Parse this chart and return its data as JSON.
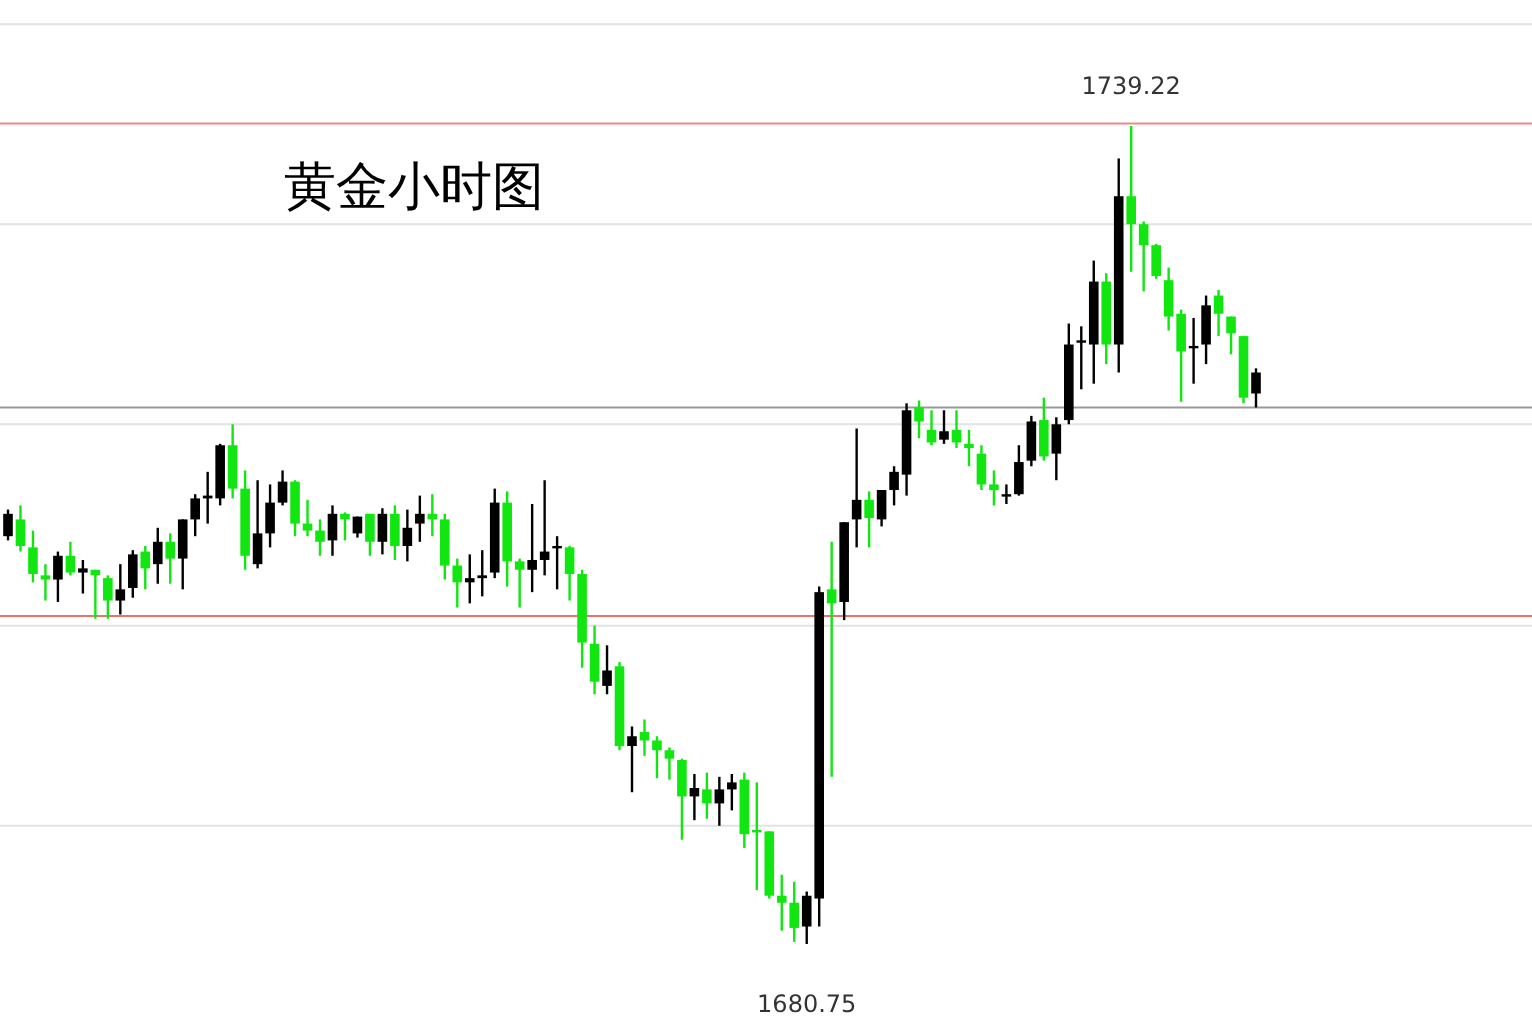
{
  "chart_data": {
    "type": "candlestick",
    "title": "黄金小时图",
    "categories": [
      null,
      null,
      null,
      null,
      null,
      null,
      null,
      null,
      null,
      null,
      null,
      null,
      null,
      null,
      null,
      null,
      null,
      null,
      null,
      null,
      null,
      null,
      null,
      null,
      null,
      null,
      null,
      null,
      null,
      null,
      null,
      null,
      null,
      null,
      null,
      null,
      null,
      null,
      null,
      null,
      null,
      null,
      null,
      null,
      null,
      null,
      null,
      null,
      null,
      null,
      null,
      null,
      null,
      null,
      null,
      null,
      null,
      null,
      null,
      null,
      null,
      null,
      null,
      null,
      null,
      null,
      null,
      null,
      null,
      null,
      null,
      null,
      null,
      null,
      null,
      null,
      null,
      null,
      null,
      null,
      null,
      null,
      null,
      null,
      null,
      null,
      null,
      null,
      null,
      null,
      null,
      null,
      null,
      null,
      null,
      null,
      null,
      null,
      null,
      null,
      null
    ],
    "ohlc": [
      [
        1709.9,
        1711.8,
        1709.6,
        1711.5
      ],
      [
        1711.1,
        1712.1,
        1708.8,
        1709.2
      ],
      [
        1709.1,
        1710.3,
        1706.6,
        1707.2
      ],
      [
        1707.1,
        1707.9,
        1705.3,
        1706.8
      ],
      [
        1706.8,
        1708.8,
        1705.2,
        1708.5
      ],
      [
        1708.5,
        1709.5,
        1707.1,
        1707.3
      ],
      [
        1707.3,
        1708.2,
        1705.8,
        1707.6
      ],
      [
        1707.5,
        1707.5,
        1704.0,
        1707.1
      ],
      [
        1706.9,
        1707.1,
        1704.0,
        1705.3
      ],
      [
        1705.3,
        1707.9,
        1704.3,
        1706.1
      ],
      [
        1706.2,
        1708.9,
        1705.5,
        1708.6
      ],
      [
        1708.8,
        1709.2,
        1706.1,
        1707.6
      ],
      [
        1707.9,
        1710.5,
        1706.5,
        1709.5
      ],
      [
        1709.5,
        1710.1,
        1706.5,
        1708.3
      ],
      [
        1708.3,
        1711.1,
        1706.1,
        1711.1
      ],
      [
        1711.1,
        1712.9,
        1709.9,
        1712.6
      ],
      [
        1712.6,
        1714.5,
        1710.8,
        1712.8
      ],
      [
        1712.6,
        1716.5,
        1712.1,
        1716.4
      ],
      [
        1716.4,
        1717.9,
        1712.6,
        1713.3
      ],
      [
        1713.3,
        1714.6,
        1707.5,
        1708.5
      ],
      [
        1707.9,
        1713.9,
        1707.6,
        1710.1
      ],
      [
        1710.1,
        1713.6,
        1709.1,
        1712.3
      ],
      [
        1712.3,
        1714.6,
        1712.1,
        1713.8
      ],
      [
        1713.8,
        1713.9,
        1709.9,
        1710.8
      ],
      [
        1710.8,
        1712.5,
        1709.9,
        1710.3
      ],
      [
        1710.3,
        1711.1,
        1708.5,
        1709.5
      ],
      [
        1709.6,
        1712.1,
        1708.5,
        1711.5
      ],
      [
        1711.5,
        1711.6,
        1709.6,
        1711.1
      ],
      [
        1710.1,
        1711.3,
        1709.8,
        1711.3
      ],
      [
        1711.5,
        1711.5,
        1708.5,
        1709.5
      ],
      [
        1709.5,
        1711.9,
        1708.6,
        1711.5
      ],
      [
        1711.5,
        1712.1,
        1708.2,
        1709.2
      ],
      [
        1709.2,
        1711.8,
        1708.1,
        1710.5
      ],
      [
        1710.8,
        1712.8,
        1709.5,
        1711.5
      ],
      [
        1711.5,
        1712.9,
        1709.9,
        1711.1
      ],
      [
        1711.1,
        1711.5,
        1706.8,
        1707.8
      ],
      [
        1707.8,
        1708.3,
        1704.8,
        1706.6
      ],
      [
        1706.6,
        1708.6,
        1705.1,
        1706.9
      ],
      [
        1706.9,
        1708.9,
        1705.6,
        1707.1
      ],
      [
        1707.3,
        1713.3,
        1706.9,
        1712.3
      ],
      [
        1712.3,
        1713.1,
        1706.3,
        1708.1
      ],
      [
        1708.1,
        1708.3,
        1704.8,
        1707.5
      ],
      [
        1707.5,
        1712.2,
        1705.9,
        1708.2
      ],
      [
        1708.2,
        1713.9,
        1707.1,
        1708.8
      ],
      [
        1709.1,
        1709.9,
        1706.1,
        1709.2
      ],
      [
        1709.1,
        1709.2,
        1705.3,
        1707.2
      ],
      [
        1707.2,
        1707.5,
        1700.5,
        1702.3
      ],
      [
        1702.2,
        1703.5,
        1698.6,
        1699.5
      ],
      [
        1699.2,
        1702.1,
        1698.6,
        1700.3
      ],
      [
        1700.6,
        1700.9,
        1694.6,
        1694.9
      ],
      [
        1694.9,
        1696.3,
        1691.6,
        1695.6
      ],
      [
        1695.9,
        1696.8,
        1694.2,
        1695.3
      ],
      [
        1695.3,
        1695.6,
        1692.6,
        1694.6
      ],
      [
        1694.6,
        1694.8,
        1692.5,
        1694.0
      ],
      [
        1693.9,
        1694.0,
        1688.2,
        1691.3
      ],
      [
        1691.3,
        1692.9,
        1689.6,
        1691.9
      ],
      [
        1691.8,
        1693.0,
        1689.7,
        1690.8
      ],
      [
        1690.8,
        1692.7,
        1689.2,
        1691.8
      ],
      [
        1691.8,
        1692.9,
        1690.3,
        1692.3
      ],
      [
        1692.5,
        1693.0,
        1687.6,
        1688.6
      ],
      [
        1688.9,
        1692.3,
        1684.6,
        1688.8
      ],
      [
        1688.8,
        1688.8,
        1684.0,
        1684.2
      ],
      [
        1684.2,
        1685.7,
        1681.7,
        1683.7
      ],
      [
        1683.7,
        1685.2,
        1680.9,
        1681.9
      ],
      [
        1682.0,
        1684.5,
        1680.75,
        1684.2
      ],
      [
        1684.0,
        1706.3,
        1682.0,
        1705.9
      ],
      [
        1706.1,
        1709.5,
        1692.7,
        1705.1
      ],
      [
        1705.2,
        1710.9,
        1703.9,
        1710.9
      ],
      [
        1711.1,
        1717.6,
        1709.1,
        1712.5
      ],
      [
        1712.5,
        1713.1,
        1709.1,
        1711.2
      ],
      [
        1711.1,
        1713.2,
        1710.6,
        1713.2
      ],
      [
        1713.2,
        1714.9,
        1712.1,
        1714.5
      ],
      [
        1714.3,
        1719.4,
        1712.8,
        1718.9
      ],
      [
        1719.1,
        1719.6,
        1716.9,
        1718.1
      ],
      [
        1717.5,
        1718.9,
        1716.4,
        1716.6
      ],
      [
        1716.8,
        1718.9,
        1716.5,
        1717.4
      ],
      [
        1717.5,
        1718.9,
        1716.2,
        1716.6
      ],
      [
        1716.5,
        1717.5,
        1714.9,
        1716.2
      ],
      [
        1715.8,
        1716.4,
        1713.2,
        1713.6
      ],
      [
        1713.6,
        1714.6,
        1712.1,
        1713.2
      ],
      [
        1712.8,
        1713.6,
        1712.2,
        1712.9
      ],
      [
        1712.9,
        1716.4,
        1712.8,
        1715.2
      ],
      [
        1715.3,
        1718.5,
        1714.9,
        1718.1
      ],
      [
        1718.2,
        1719.8,
        1715.3,
        1715.6
      ],
      [
        1715.8,
        1718.4,
        1713.9,
        1717.9
      ],
      [
        1718.2,
        1725.1,
        1717.9,
        1723.6
      ],
      [
        1723.8,
        1724.9,
        1720.4,
        1723.9
      ],
      [
        1723.6,
        1729.6,
        1720.8,
        1728.1
      ],
      [
        1728.1,
        1728.7,
        1722.2,
        1723.6
      ],
      [
        1723.6,
        1736.9,
        1721.6,
        1734.2
      ],
      [
        1734.2,
        1739.22,
        1728.8,
        1732.2
      ],
      [
        1732.2,
        1732.4,
        1727.4,
        1730.7
      ],
      [
        1730.7,
        1730.8,
        1728.3,
        1728.5
      ],
      [
        1728.2,
        1729.1,
        1724.6,
        1725.6
      ],
      [
        1725.8,
        1726.1,
        1719.5,
        1723.1
      ],
      [
        1723.4,
        1725.5,
        1720.8,
        1723.5
      ],
      [
        1723.6,
        1727.1,
        1722.2,
        1726.4
      ],
      [
        1727.1,
        1727.5,
        1724.2,
        1725.8
      ],
      [
        1725.6,
        1725.6,
        1722.9,
        1724.4
      ],
      [
        1724.2,
        1724.2,
        1719.4,
        1719.8
      ],
      [
        1720.1,
        1721.9,
        1719.1,
        1721.6
      ]
    ],
    "colors": [
      "#000000",
      "#11e611",
      "#11e611",
      "#11e611",
      "#000000",
      "#11e611",
      "#000000",
      "#11e611",
      "#11e611",
      "#000000",
      "#000000",
      "#11e611",
      "#000000",
      "#11e611",
      "#000000",
      "#000000",
      "#000000",
      "#000000",
      "#11e611",
      "#11e611",
      "#000000",
      "#000000",
      "#000000",
      "#11e611",
      "#11e611",
      "#11e611",
      "#000000",
      "#11e611",
      "#000000",
      "#11e611",
      "#000000",
      "#11e611",
      "#000000",
      "#000000",
      "#11e611",
      "#11e611",
      "#11e611",
      "#000000",
      "#000000",
      "#000000",
      "#11e611",
      "#11e611",
      "#000000",
      "#000000",
      "#000000",
      "#11e611",
      "#11e611",
      "#11e611",
      "#000000",
      "#11e611",
      "#000000",
      "#11e611",
      "#11e611",
      "#11e611",
      "#11e611",
      "#000000",
      "#11e611",
      "#000000",
      "#000000",
      "#11e611",
      "#11e611",
      "#11e611",
      "#11e611",
      "#11e611",
      "#000000",
      "#000000",
      "#11e611",
      "#000000",
      "#000000",
      "#11e611",
      "#000000",
      "#000000",
      "#000000",
      "#11e611",
      "#11e611",
      "#000000",
      "#11e611",
      "#11e611",
      "#11e611",
      "#11e611",
      "#000000",
      "#000000",
      "#000000",
      "#11e611",
      "#000000",
      "#000000",
      "#000000",
      "#000000",
      "#11e611",
      "#000000",
      "#11e611",
      "#11e611",
      "#11e611",
      "#11e611",
      "#11e611",
      "#000000",
      "#000000",
      "#11e611",
      "#11e611",
      "#11e611",
      "#000000"
    ],
    "yticks": [
      {
        "value": 1689.2,
        "label": null
      },
      {
        "value": 1703.5,
        "label": null
      },
      {
        "value": 1717.9,
        "label": null
      },
      {
        "value": 1732.2,
        "label": null
      },
      {
        "value": 1746.5,
        "label": null
      }
    ],
    "grid": "y",
    "ref_lines": [
      {
        "axis": "y",
        "value": 1739.4,
        "color": "#f08a8a"
      },
      {
        "axis": "y",
        "value": 1719.1,
        "color": "#999999"
      },
      {
        "axis": "y",
        "value": 1704.2,
        "color": "#f07070"
      }
    ],
    "annotations": [
      {
        "text": "1739.22",
        "y": 1739.22
      },
      {
        "text": "1680.75",
        "y": 1680.75
      }
    ]
  }
}
